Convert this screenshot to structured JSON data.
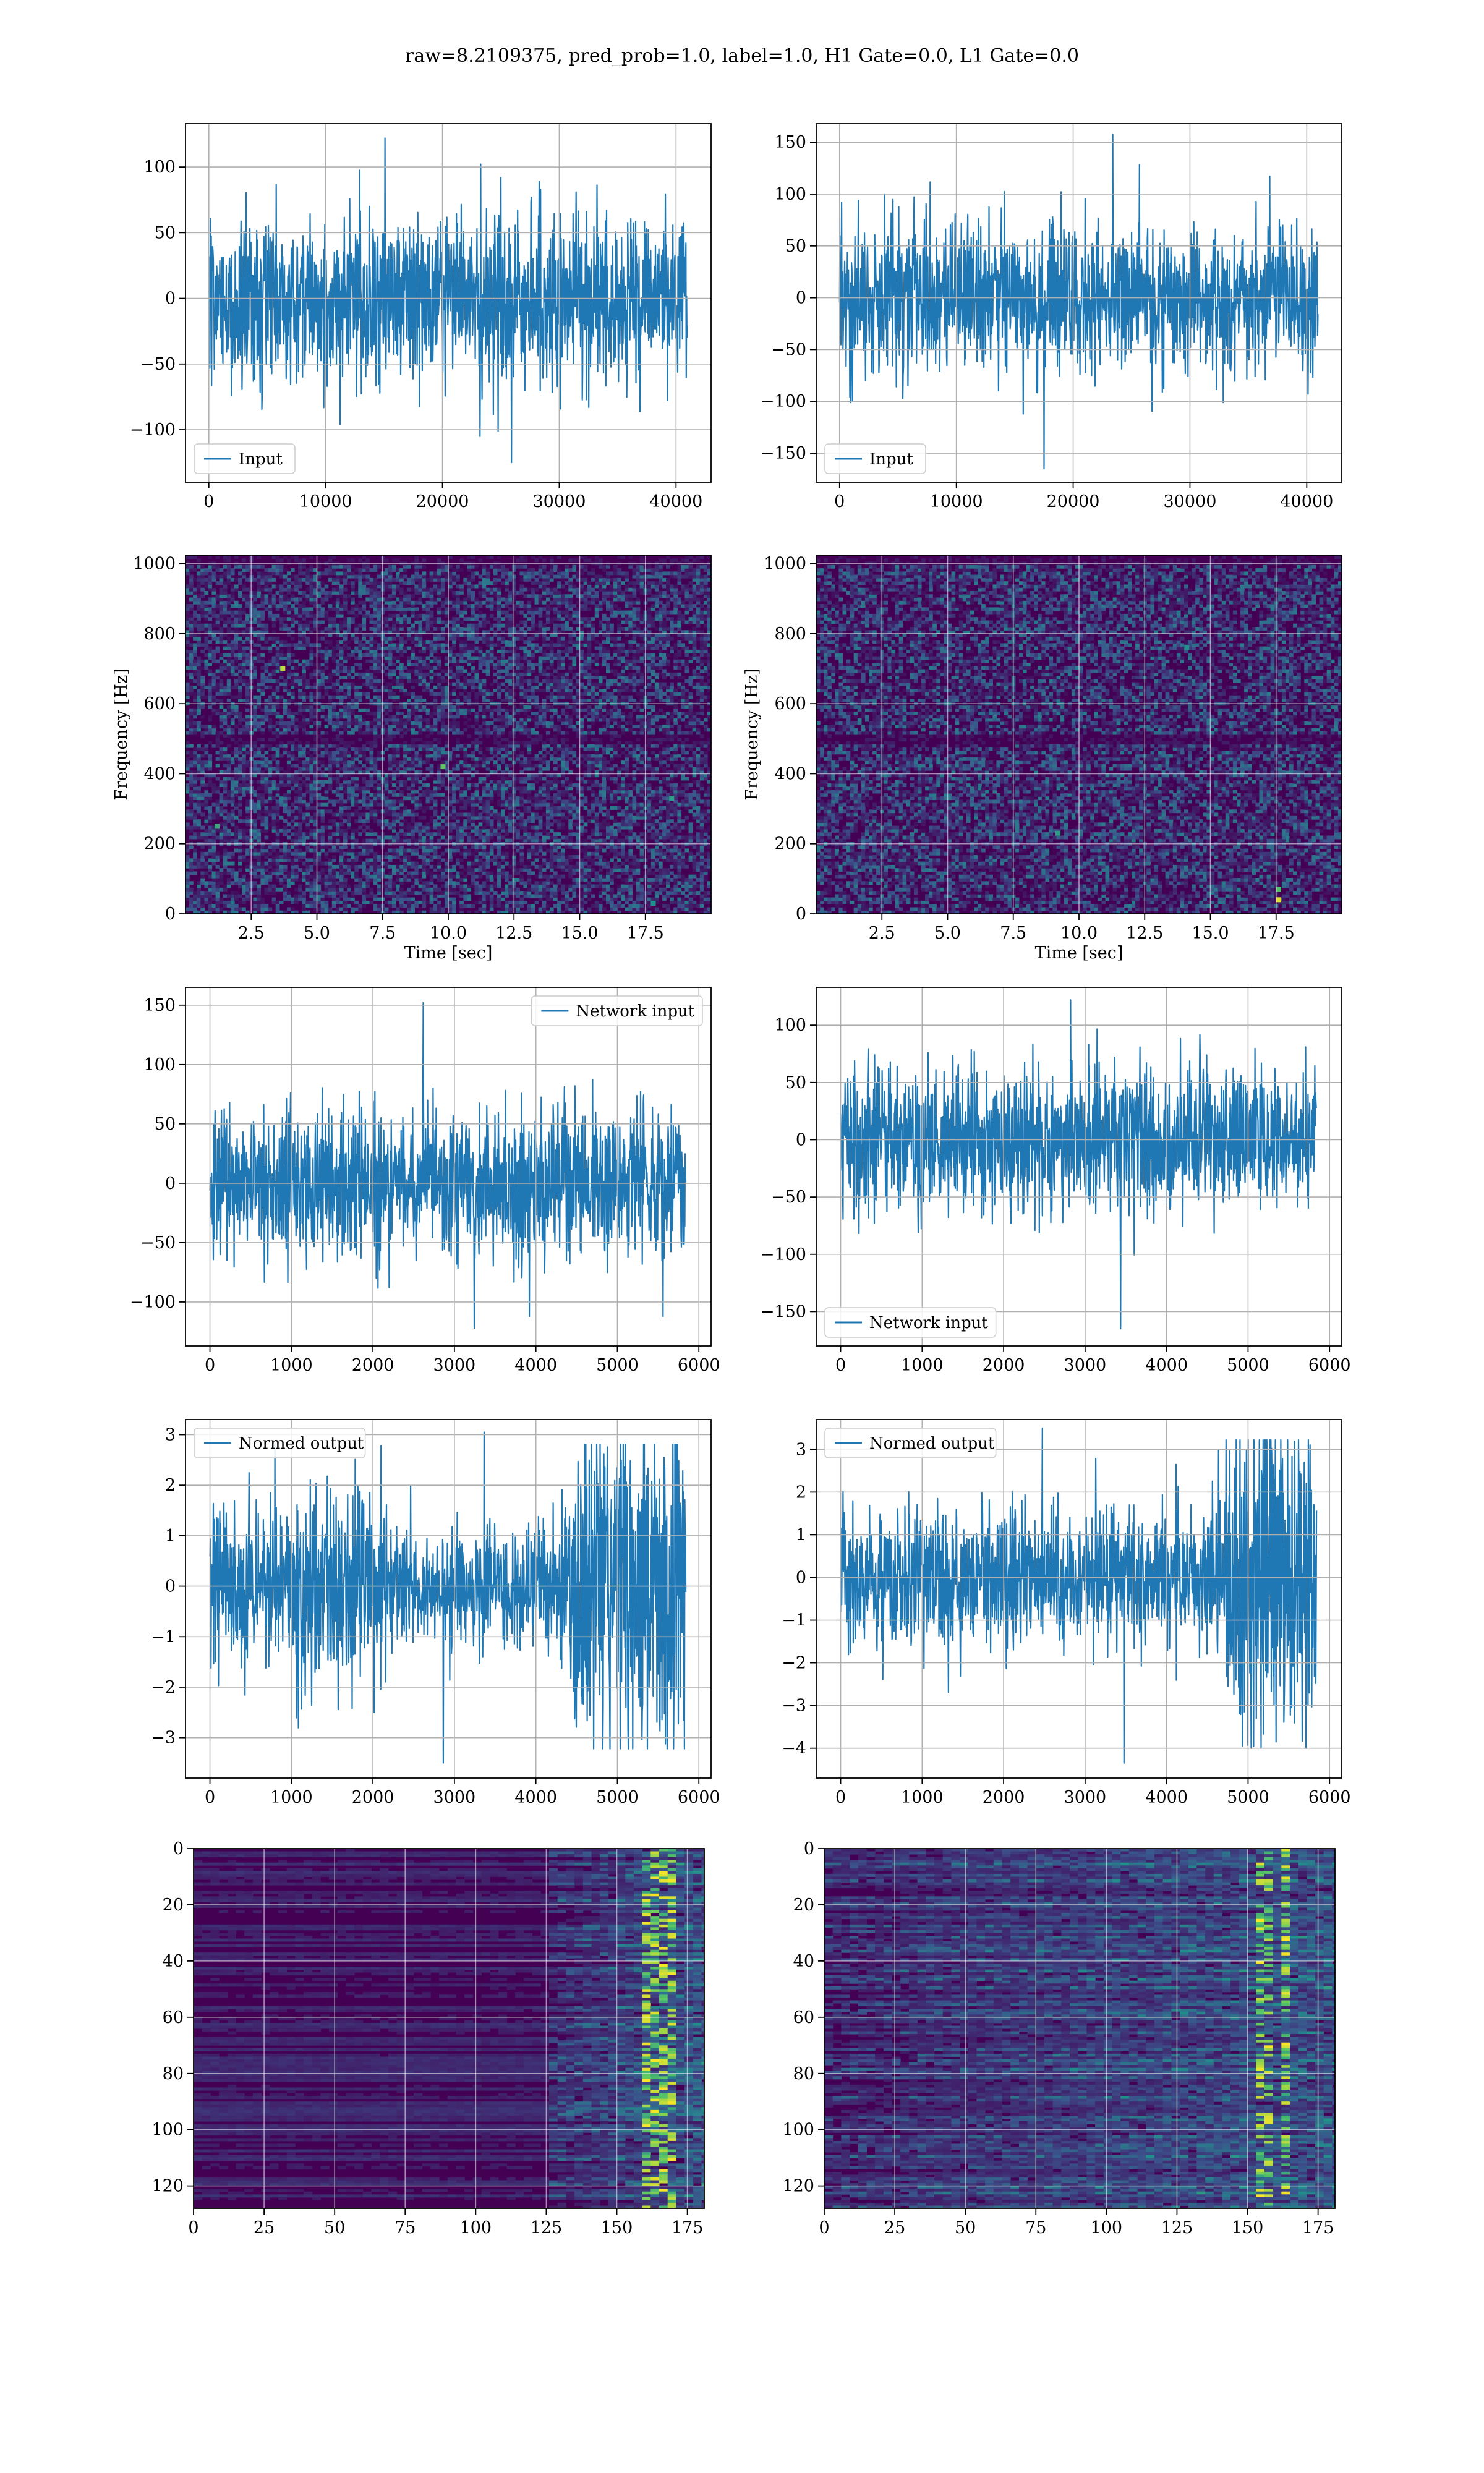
{
  "figure": {
    "title": "raw=8.2109375, pred_prob=1.0, label=1.0, H1 Gate=0.0, L1 Gate=0.0"
  },
  "colors": {
    "series": "#1f77b4",
    "grid": "#b0b0b0",
    "spectrogram_background": "#440154",
    "viridis": [
      "#440154",
      "#3b528b",
      "#21918c",
      "#5ec962",
      "#fde725"
    ]
  },
  "chart_data": [
    {
      "id": "h1-input",
      "type": "line",
      "title": "",
      "xlabel": "",
      "ylabel": "",
      "xlim": [
        -2000,
        43000
      ],
      "ylim": [
        -140,
        133
      ],
      "xticks": [
        0,
        10000,
        20000,
        30000,
        40000
      ],
      "yticks": [
        -100,
        -50,
        0,
        50,
        100
      ],
      "xtick_labels": [
        "0",
        "10000",
        "20000",
        "30000",
        "40000"
      ],
      "ytick_labels": [
        "−100",
        "−50",
        "0",
        "50",
        "100"
      ],
      "grid": true,
      "legend": {
        "placement": "lower-left",
        "entries": [
          "Input"
        ]
      },
      "series": [
        {
          "name": "Input",
          "x_range": [
            0,
            40960
          ],
          "envelope": [
            -125,
            122
          ],
          "typical_band": [
            -45,
            45
          ]
        }
      ]
    },
    {
      "id": "l1-input",
      "type": "line",
      "title": "",
      "xlabel": "",
      "ylabel": "",
      "xlim": [
        -2000,
        43000
      ],
      "ylim": [
        -178,
        168
      ],
      "xticks": [
        0,
        10000,
        20000,
        30000,
        40000
      ],
      "yticks": [
        -150,
        -100,
        -50,
        0,
        50,
        100,
        150
      ],
      "xtick_labels": [
        "0",
        "10000",
        "20000",
        "30000",
        "40000"
      ],
      "ytick_labels": [
        "−150",
        "−100",
        "−50",
        "0",
        "50",
        "100",
        "150"
      ],
      "grid": true,
      "legend": {
        "placement": "lower-left",
        "entries": [
          "Input"
        ]
      },
      "series": [
        {
          "name": "Input",
          "x_range": [
            0,
            40960
          ],
          "envelope": [
            -165,
            158
          ],
          "typical_band": [
            -50,
            50
          ]
        }
      ]
    },
    {
      "id": "h1-spectrogram",
      "type": "heatmap",
      "title": "",
      "xlabel": "Time [sec]",
      "ylabel": "Frequency [Hz]",
      "xlim": [
        0,
        20
      ],
      "ylim": [
        0,
        1024
      ],
      "xticks": [
        2.5,
        5.0,
        7.5,
        10.0,
        12.5,
        15.0,
        17.5
      ],
      "yticks": [
        0,
        200,
        400,
        600,
        800,
        1000
      ],
      "xtick_labels": [
        "2.5",
        "5.0",
        "7.5",
        "10.0",
        "12.5",
        "15.0",
        "17.5"
      ],
      "ytick_labels": [
        "0",
        "200",
        "400",
        "600",
        "800",
        "1000"
      ],
      "grid": true,
      "colormap": "viridis",
      "hot_spots": [
        [
          3.7,
          700,
          0.9
        ],
        [
          9.8,
          420,
          0.75
        ],
        [
          1.2,
          250,
          0.6
        ],
        [
          18.5,
          330,
          0.55
        ],
        [
          17.8,
          30,
          0.5
        ]
      ],
      "dark_bands_hz": [
        500,
        1010
      ]
    },
    {
      "id": "l1-spectrogram",
      "type": "heatmap",
      "title": "",
      "xlabel": "Time [sec]",
      "ylabel": "Frequency [Hz]",
      "xlim": [
        0,
        20
      ],
      "ylim": [
        0,
        1024
      ],
      "xticks": [
        2.5,
        5.0,
        7.5,
        10.0,
        12.5,
        15.0,
        17.5
      ],
      "yticks": [
        0,
        200,
        400,
        600,
        800,
        1000
      ],
      "xtick_labels": [
        "2.5",
        "5.0",
        "7.5",
        "10.0",
        "12.5",
        "15.0",
        "17.5"
      ],
      "ytick_labels": [
        "0",
        "200",
        "400",
        "600",
        "800",
        "1000"
      ],
      "grid": true,
      "colormap": "viridis",
      "hot_spots": [
        [
          17.6,
          40,
          0.95
        ],
        [
          17.6,
          70,
          0.7
        ],
        [
          9.2,
          230,
          0.55
        ],
        [
          14.1,
          760,
          0.5
        ]
      ],
      "dark_bands_hz": [
        500,
        1010
      ]
    },
    {
      "id": "h1-network-input",
      "type": "line",
      "title": "",
      "xlabel": "",
      "ylabel": "",
      "xlim": [
        -300,
        6150
      ],
      "ylim": [
        -137,
        165
      ],
      "xticks": [
        0,
        1000,
        2000,
        3000,
        4000,
        5000,
        6000
      ],
      "yticks": [
        -100,
        -50,
        0,
        50,
        100,
        150
      ],
      "xtick_labels": [
        "0",
        "1000",
        "2000",
        "3000",
        "4000",
        "5000",
        "6000"
      ],
      "ytick_labels": [
        "−100",
        "−50",
        "0",
        "50",
        "100",
        "150"
      ],
      "grid": true,
      "legend": {
        "placement": "upper-right",
        "entries": [
          "Network input"
        ]
      },
      "series": [
        {
          "name": "Network input",
          "x_range": [
            0,
            5840
          ],
          "envelope": [
            -122,
            152
          ],
          "typical_band": [
            -45,
            45
          ]
        }
      ]
    },
    {
      "id": "l1-network-input",
      "type": "line",
      "title": "",
      "xlabel": "",
      "ylabel": "",
      "xlim": [
        -300,
        6150
      ],
      "ylim": [
        -180,
        133
      ],
      "xticks": [
        0,
        1000,
        2000,
        3000,
        4000,
        5000,
        6000
      ],
      "yticks": [
        -150,
        -100,
        -50,
        0,
        50,
        100
      ],
      "xtick_labels": [
        "0",
        "1000",
        "2000",
        "3000",
        "4000",
        "5000",
        "6000"
      ],
      "ytick_labels": [
        "−150",
        "−100",
        "−50",
        "0",
        "50",
        "100"
      ],
      "grid": true,
      "legend": {
        "placement": "lower-left",
        "entries": [
          "Network input"
        ]
      },
      "series": [
        {
          "name": "Network input",
          "x_range": [
            0,
            5840
          ],
          "envelope": [
            -165,
            122
          ],
          "typical_band": [
            -45,
            45
          ]
        }
      ]
    },
    {
      "id": "h1-normed-output",
      "type": "line",
      "title": "",
      "xlabel": "",
      "ylabel": "",
      "xlim": [
        -300,
        6150
      ],
      "ylim": [
        -3.8,
        3.3
      ],
      "xticks": [
        0,
        1000,
        2000,
        3000,
        4000,
        5000,
        6000
      ],
      "yticks": [
        -3,
        -2,
        -1,
        0,
        1,
        2,
        3
      ],
      "xtick_labels": [
        "0",
        "1000",
        "2000",
        "3000",
        "4000",
        "5000",
        "6000"
      ],
      "ytick_labels": [
        "−3",
        "−2",
        "−1",
        "0",
        "1",
        "2",
        "3"
      ],
      "grid": true,
      "legend": {
        "placement": "upper-left",
        "entries": [
          "Normed output"
        ]
      },
      "series": [
        {
          "name": "Normed output",
          "x_range": [
            0,
            5840
          ],
          "envelope": [
            -3.5,
            3.05
          ],
          "amplitude_profile": [
            [
              0,
              0.6
            ],
            [
              1000,
              0.6
            ],
            [
              1100,
              0.8
            ],
            [
              2200,
              0.8
            ],
            [
              2350,
              0.45
            ],
            [
              4000,
              0.45
            ],
            [
              4300,
              0.6
            ],
            [
              4650,
              1.3
            ],
            [
              5300,
              1.6
            ],
            [
              5840,
              1.4
            ]
          ]
        }
      ]
    },
    {
      "id": "l1-normed-output",
      "type": "line",
      "title": "",
      "xlabel": "",
      "ylabel": "",
      "xlim": [
        -300,
        6150
      ],
      "ylim": [
        -4.7,
        3.7
      ],
      "xticks": [
        0,
        1000,
        2000,
        3000,
        4000,
        5000,
        6000
      ],
      "yticks": [
        -4,
        -3,
        -2,
        -1,
        0,
        1,
        2,
        3
      ],
      "xtick_labels": [
        "0",
        "1000",
        "2000",
        "3000",
        "4000",
        "5000",
        "6000"
      ],
      "ytick_labels": [
        "−4",
        "−3",
        "−2",
        "−1",
        "0",
        "1",
        "2",
        "3"
      ],
      "grid": true,
      "legend": {
        "placement": "upper-left",
        "entries": [
          "Normed output"
        ]
      },
      "series": [
        {
          "name": "Normed output",
          "x_range": [
            0,
            5840
          ],
          "envelope": [
            -4.35,
            3.5
          ],
          "amplitude_profile": [
            [
              0,
              0.6
            ],
            [
              4600,
              0.6
            ],
            [
              4700,
              1.3
            ],
            [
              5200,
              1.7
            ],
            [
              5840,
              1.5
            ]
          ]
        }
      ]
    },
    {
      "id": "h1-feature-map",
      "type": "heatmap",
      "title": "",
      "xlabel": "",
      "ylabel": "",
      "xlim": [
        0,
        181
      ],
      "ylim": [
        128,
        0
      ],
      "y_inverted": true,
      "xticks": [
        0,
        25,
        50,
        75,
        100,
        125,
        150,
        175
      ],
      "yticks": [
        0,
        20,
        40,
        60,
        80,
        100,
        120
      ],
      "xtick_labels": [
        "0",
        "25",
        "50",
        "75",
        "100",
        "125",
        "150",
        "175"
      ],
      "ytick_labels": [
        "0",
        "20",
        "40",
        "60",
        "80",
        "100",
        "120"
      ],
      "grid": true,
      "colormap": "viridis",
      "activity_onset_col": 125,
      "hot_columns": [
        160,
        166
      ]
    },
    {
      "id": "l1-feature-map",
      "type": "heatmap",
      "title": "",
      "xlabel": "",
      "ylabel": "",
      "xlim": [
        0,
        181
      ],
      "ylim": [
        128,
        0
      ],
      "y_inverted": true,
      "xticks": [
        0,
        25,
        50,
        75,
        100,
        125,
        150,
        175
      ],
      "yticks": [
        0,
        20,
        40,
        60,
        80,
        100,
        120
      ],
      "xtick_labels": [
        "0",
        "25",
        "50",
        "75",
        "100",
        "125",
        "150",
        "175"
      ],
      "ytick_labels": [
        "0",
        "20",
        "40",
        "60",
        "80",
        "100",
        "120"
      ],
      "grid": true,
      "colormap": "viridis",
      "activity_onset_col": 0,
      "hot_columns": [
        155,
        162
      ]
    }
  ]
}
